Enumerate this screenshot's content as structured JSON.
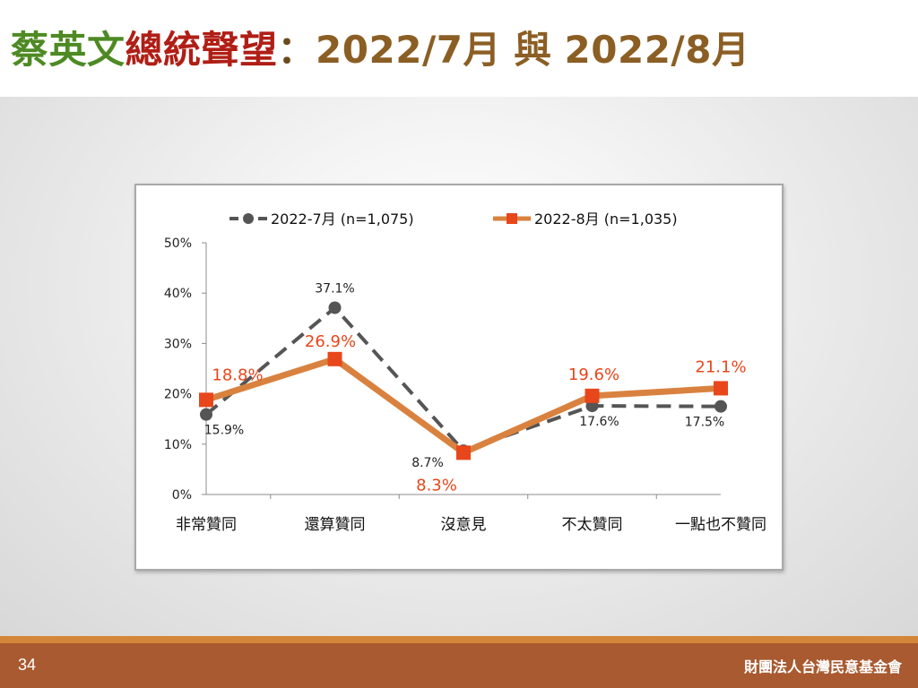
{
  "slide": {
    "title_part1": "蔡英文",
    "title_part2": "總統聲望",
    "title_colon": "：",
    "title_part3": "2022/7月",
    "title_part4": "與",
    "title_part5": "2022/8月",
    "page_number": "34",
    "organization": "財團法人台灣民意基金會"
  },
  "colors": {
    "series1": "#555555",
    "series2": "#d9823f",
    "series2_marker": "#e8461b",
    "series2_label": "#e8461b",
    "footer": "#a95a30",
    "footer_strip": "#d4873a"
  },
  "chart_data": {
    "type": "line",
    "categories": [
      "非常贊同",
      "還算贊同",
      "沒意見",
      "不太贊同",
      "一點也不贊同"
    ],
    "series": [
      {
        "name": "2022-7月 (n=1,075)",
        "values": [
          15.9,
          37.1,
          8.7,
          17.6,
          17.5
        ],
        "labels": [
          "15.9%",
          "37.1%",
          "8.7%",
          "17.6%",
          "17.5%"
        ],
        "style": "dashed",
        "marker": "circle"
      },
      {
        "name": "2022-8月 (n=1,035)",
        "values": [
          18.8,
          26.9,
          8.3,
          19.6,
          21.1
        ],
        "labels": [
          "18.8%",
          "26.9%",
          "8.3%",
          "19.6%",
          "21.1%"
        ],
        "style": "solid",
        "marker": "square"
      }
    ],
    "yticks": [
      "0%",
      "10%",
      "20%",
      "30%",
      "40%",
      "50%"
    ],
    "ylim": [
      0,
      50
    ],
    "grid": false,
    "legend": "top"
  }
}
